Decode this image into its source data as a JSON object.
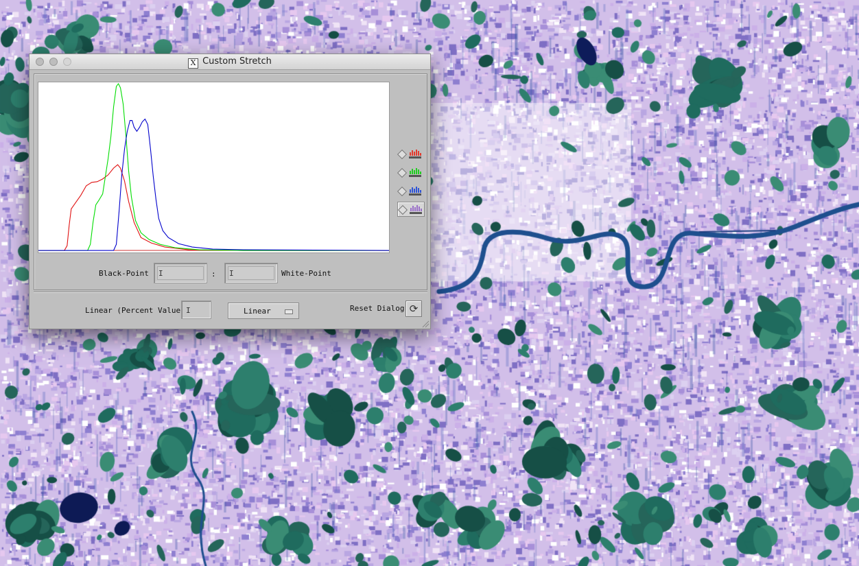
{
  "window": {
    "title": "Custom Stretch",
    "x_logo": "X"
  },
  "histogram": {
    "series": [
      {
        "name": "red",
        "color": "#e01010"
      },
      {
        "name": "green",
        "color": "#00dd00"
      },
      {
        "name": "blue",
        "color": "#0000cc"
      }
    ]
  },
  "band_selectors": [
    {
      "icon": "red-band-histogram-icon",
      "color": "#e23b2e",
      "selected": false
    },
    {
      "icon": "green-band-histogram-icon",
      "color": "#22cc22",
      "selected": false
    },
    {
      "icon": "blue-band-histogram-icon",
      "color": "#2f54d6",
      "selected": false
    },
    {
      "icon": "rgb-band-histogram-icon",
      "color": "#9a6fc9",
      "selected": true
    }
  ],
  "controls": {
    "black_point_label": "Black-Point",
    "black_point_value": "",
    "separator": ":",
    "white_point_value": "",
    "white_point_label": "White-Point",
    "linear_percent_label": "Linear (Percent Value)",
    "linear_percent_value": "",
    "stretch_type": "Linear",
    "reset_label": "Reset Dialog"
  }
}
